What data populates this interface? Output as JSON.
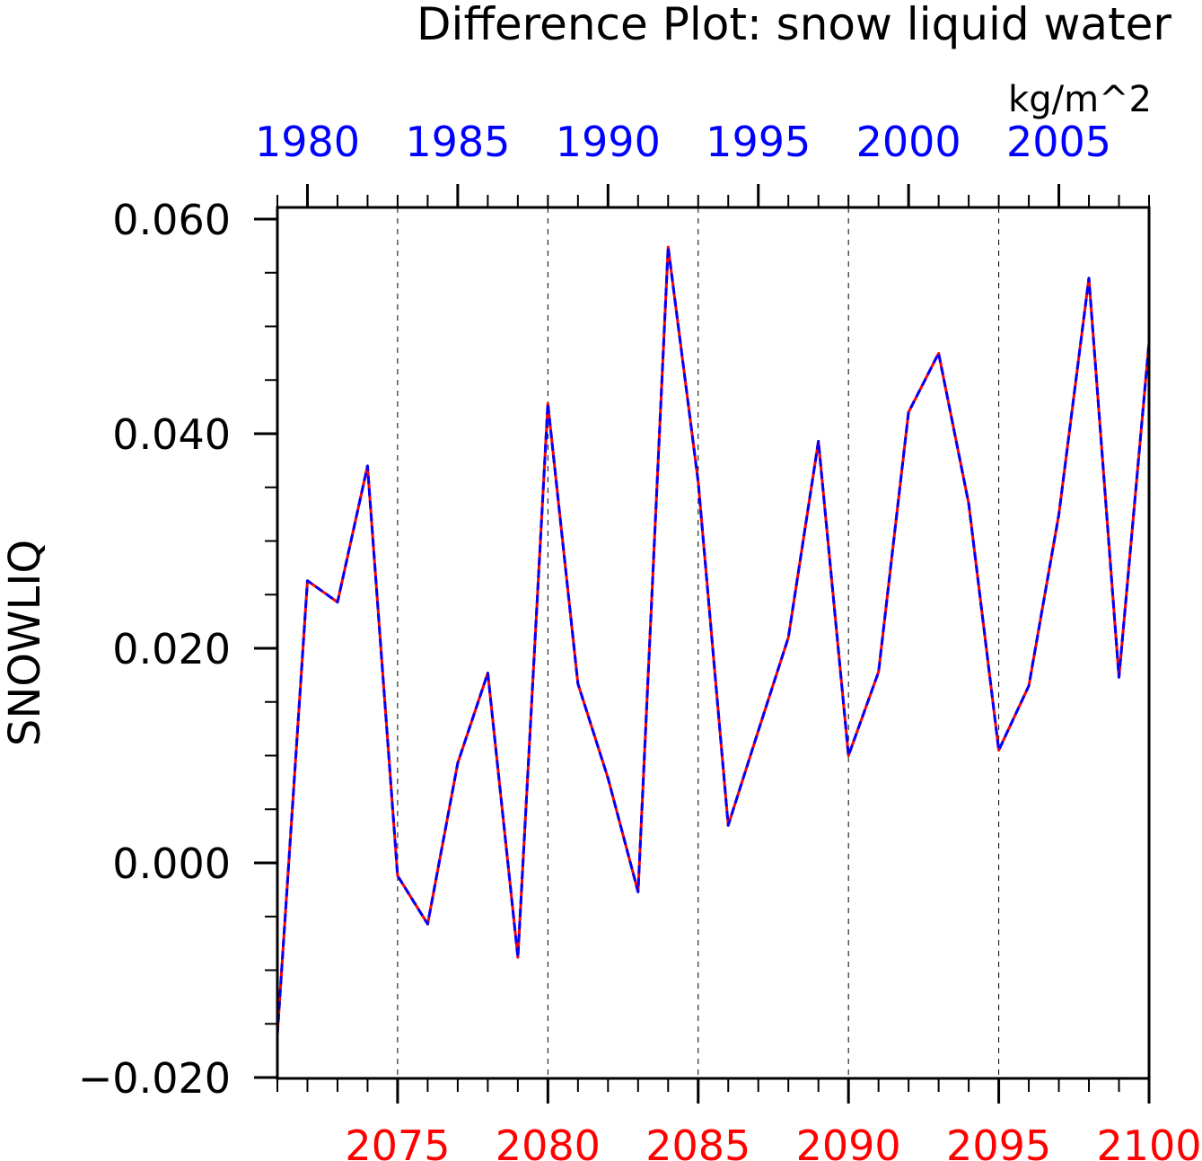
{
  "chart_data": {
    "type": "line",
    "title": "Difference Plot: snow liquid water",
    "units": "kg/m^2",
    "ylabel": "SNOWLIQ",
    "ylim": [
      -0.02,
      0.06
    ],
    "y_major_ticks": [
      -0.02,
      0.0,
      0.02,
      0.04,
      0.06
    ],
    "y_tick_labels": [
      "−0.020",
      "0.000",
      "0.020",
      "0.040",
      "0.060"
    ],
    "y_minor_step": 0.005,
    "bottom_axis": {
      "range": [
        2071,
        2100
      ],
      "ticks": [
        2075,
        2080,
        2085,
        2090,
        2095,
        2100
      ],
      "tick_labels": [
        "2075",
        "2080",
        "2085",
        "2090",
        "2095",
        "2100"
      ],
      "color": "#ff0000"
    },
    "top_axis": {
      "range": [
        1979,
        2008
      ],
      "ticks": [
        1980,
        1985,
        1990,
        1995,
        2000,
        2005
      ],
      "tick_labels": [
        "1980",
        "1985",
        "1990",
        "1995",
        "2000",
        "2005"
      ],
      "color": "#0000ff"
    },
    "grid": "vertical dashed at major bottom-axis ticks",
    "x": [
      2071,
      2072,
      2073,
      2074,
      2075,
      2076,
      2077,
      2078,
      2079,
      2080,
      2081,
      2082,
      2083,
      2084,
      2085,
      2086,
      2087,
      2088,
      2089,
      2090,
      2091,
      2092,
      2093,
      2094,
      2095,
      2096,
      2097,
      2098,
      2099,
      2100
    ],
    "series": [
      {
        "color": "#ff0000",
        "style": "solid",
        "values": [
          -0.016,
          0.0263,
          0.0243,
          0.037,
          -0.0012,
          -0.0057,
          0.0093,
          0.0177,
          -0.0088,
          0.0428,
          0.0167,
          0.0079,
          -0.0027,
          0.0574,
          0.0355,
          0.0035,
          0.0123,
          0.021,
          0.0393,
          0.01,
          0.0178,
          0.042,
          0.0475,
          0.0335,
          0.0105,
          0.0165,
          0.0325,
          0.0545,
          0.0173,
          0.0485
        ]
      },
      {
        "color": "#0000ff",
        "style": "dashed",
        "values": [
          -0.016,
          0.0263,
          0.0243,
          0.037,
          -0.0012,
          -0.0057,
          0.0093,
          0.0177,
          -0.0088,
          0.0428,
          0.0167,
          0.0079,
          -0.0027,
          0.0574,
          0.0355,
          0.0035,
          0.0123,
          0.021,
          0.0393,
          0.01,
          0.0178,
          0.042,
          0.0475,
          0.0335,
          0.0105,
          0.0165,
          0.0325,
          0.0545,
          0.0173,
          0.0485
        ]
      }
    ]
  }
}
